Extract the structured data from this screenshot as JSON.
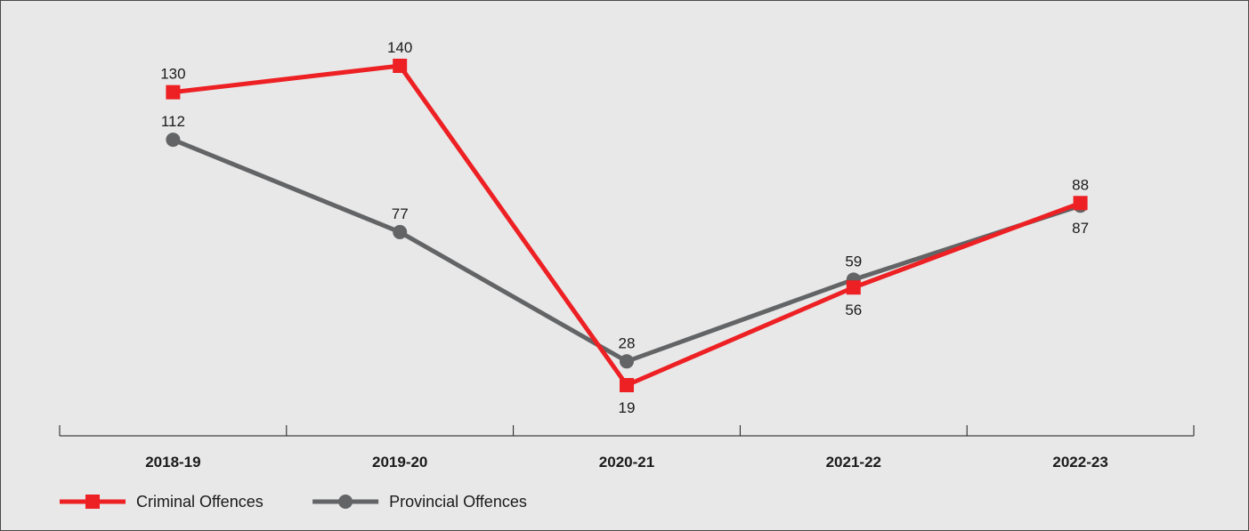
{
  "chart_data": {
    "type": "line",
    "categories": [
      "2018-19",
      "2019-20",
      "2020-21",
      "2021-22",
      "2022-23"
    ],
    "series": [
      {
        "name": "Criminal Offences",
        "values": [
          130,
          140,
          19,
          56,
          88
        ],
        "color": "#ed2024",
        "marker": "square"
      },
      {
        "name": "Provincial Offences",
        "values": [
          112,
          77,
          28,
          59,
          87
        ],
        "color": "#636466",
        "marker": "circle"
      }
    ],
    "label_positions": {
      "Criminal Offences": [
        "above",
        "above",
        "below",
        "below",
        "above"
      ],
      "Provincial Offences": [
        "above",
        "above",
        "above",
        "above",
        "below"
      ]
    },
    "ylim": [
      0,
      150
    ],
    "grid": false,
    "legend_position": "bottom-left",
    "title": "",
    "xlabel": "",
    "ylabel": ""
  }
}
